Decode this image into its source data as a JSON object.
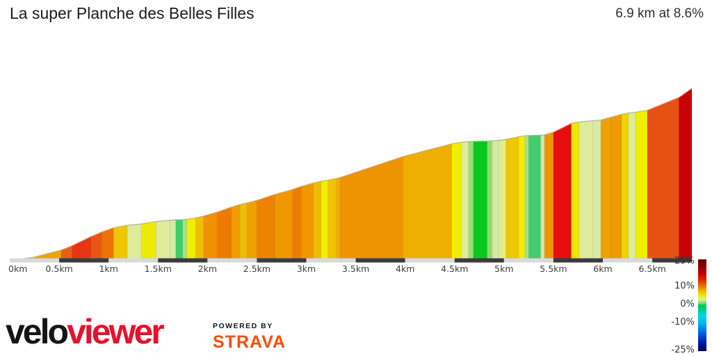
{
  "page": {
    "title": "La super Planche des Belles Filles",
    "summary": "6.9 km at 8.6%"
  },
  "chart_data": {
    "type": "area",
    "title": "La super Planche des Belles Filles",
    "subtitle": "6.9 km at 8.6%",
    "length_km": 6.9,
    "avg_gradient_pct": 8.6,
    "x_range_km": [
      0,
      6.9
    ],
    "x_tick_step_km": 0.5,
    "x_tick_labels": [
      "0km",
      "0.5km",
      "1km",
      "1.5km",
      "2km",
      "2.5km",
      "3km",
      "3.5km",
      "4km",
      "4.5km",
      "5km",
      "5.5km",
      "6km",
      "6.5km"
    ],
    "grid": false,
    "segments": [
      {
        "from_km": 0.0,
        "to_km": 0.25,
        "gradient_pct": 4.0,
        "color": "#e8c414"
      },
      {
        "from_km": 0.25,
        "to_km": 0.52,
        "gradient_pct": 7.0,
        "color": "#efa306"
      },
      {
        "from_km": 0.52,
        "to_km": 0.63,
        "gradient_pct": 11.0,
        "color": "#e95d17"
      },
      {
        "from_km": 0.63,
        "to_km": 0.82,
        "gradient_pct": 13.0,
        "color": "#e73513"
      },
      {
        "from_km": 0.82,
        "to_km": 0.93,
        "gradient_pct": 11.5,
        "color": "#e85514"
      },
      {
        "from_km": 0.93,
        "to_km": 1.05,
        "gradient_pct": 9.5,
        "color": "#ed7104"
      },
      {
        "from_km": 1.05,
        "to_km": 1.19,
        "gradient_pct": 5.0,
        "color": "#eec606"
      },
      {
        "from_km": 1.19,
        "to_km": 1.33,
        "gradient_pct": 2.5,
        "color": "#dfeb9a"
      },
      {
        "from_km": 1.33,
        "to_km": 1.48,
        "gradient_pct": 4.5,
        "color": "#efe906"
      },
      {
        "from_km": 1.48,
        "to_km": 1.62,
        "gradient_pct": 2.5,
        "color": "#dfeb9a"
      },
      {
        "from_km": 1.62,
        "to_km": 1.68,
        "gradient_pct": 2.0,
        "color": "#d4e9a5"
      },
      {
        "from_km": 1.68,
        "to_km": 1.75,
        "gradient_pct": 0.8,
        "color": "#3ecf68"
      },
      {
        "from_km": 1.75,
        "to_km": 1.79,
        "gradient_pct": 1.5,
        "color": "#a5e18c"
      },
      {
        "from_km": 1.79,
        "to_km": 1.88,
        "gradient_pct": 4.5,
        "color": "#f0ee03"
      },
      {
        "from_km": 1.88,
        "to_km": 1.96,
        "gradient_pct": 6.0,
        "color": "#eec002"
      },
      {
        "from_km": 1.96,
        "to_km": 2.1,
        "gradient_pct": 8.0,
        "color": "#ef9102"
      },
      {
        "from_km": 2.1,
        "to_km": 2.24,
        "gradient_pct": 9.5,
        "color": "#ed7a02"
      },
      {
        "from_km": 2.24,
        "to_km": 2.33,
        "gradient_pct": 8.0,
        "color": "#f09c02"
      },
      {
        "from_km": 2.33,
        "to_km": 2.4,
        "gradient_pct": 6.0,
        "color": "#eebc02"
      },
      {
        "from_km": 2.4,
        "to_km": 2.5,
        "gradient_pct": 7.0,
        "color": "#eda202"
      },
      {
        "from_km": 2.5,
        "to_km": 2.68,
        "gradient_pct": 9.0,
        "color": "#ee8202"
      },
      {
        "from_km": 2.68,
        "to_km": 2.86,
        "gradient_pct": 7.5,
        "color": "#f09802"
      },
      {
        "from_km": 2.86,
        "to_km": 2.95,
        "gradient_pct": 9.5,
        "color": "#ee7c02"
      },
      {
        "from_km": 2.95,
        "to_km": 3.07,
        "gradient_pct": 7.5,
        "color": "#f09802"
      },
      {
        "from_km": 3.07,
        "to_km": 3.15,
        "gradient_pct": 6.0,
        "color": "#eebc02"
      },
      {
        "from_km": 3.15,
        "to_km": 3.22,
        "gradient_pct": 4.5,
        "color": "#f0f002"
      },
      {
        "from_km": 3.22,
        "to_km": 3.3,
        "gradient_pct": 5.5,
        "color": "#eec402"
      },
      {
        "from_km": 3.3,
        "to_km": 3.34,
        "gradient_pct": 6.5,
        "color": "#edb002"
      },
      {
        "from_km": 3.34,
        "to_km": 3.98,
        "gradient_pct": 9.0,
        "color": "#ee9402"
      },
      {
        "from_km": 3.98,
        "to_km": 4.47,
        "gradient_pct": 7.0,
        "color": "#eeae02"
      },
      {
        "from_km": 4.47,
        "to_km": 4.57,
        "gradient_pct": 4.5,
        "color": "#f0ee03"
      },
      {
        "from_km": 4.57,
        "to_km": 4.64,
        "gradient_pct": 2.5,
        "color": "#dfeb9a"
      },
      {
        "from_km": 4.64,
        "to_km": 4.69,
        "gradient_pct": 1.5,
        "color": "#9edd78"
      },
      {
        "from_km": 4.69,
        "to_km": 4.83,
        "gradient_pct": 0.5,
        "color": "#06c81e"
      },
      {
        "from_km": 4.83,
        "to_km": 4.88,
        "gradient_pct": 1.2,
        "color": "#8fdc64"
      },
      {
        "from_km": 4.88,
        "to_km": 4.95,
        "gradient_pct": 2.2,
        "color": "#d4e9a5"
      },
      {
        "from_km": 4.95,
        "to_km": 5.02,
        "gradient_pct": 3.5,
        "color": "#e4ed8a"
      },
      {
        "from_km": 5.02,
        "to_km": 5.15,
        "gradient_pct": 5.5,
        "color": "#eec702"
      },
      {
        "from_km": 5.15,
        "to_km": 5.21,
        "gradient_pct": 4.5,
        "color": "#f0ee03"
      },
      {
        "from_km": 5.21,
        "to_km": 5.25,
        "gradient_pct": 1.5,
        "color": "#a5e18c"
      },
      {
        "from_km": 5.25,
        "to_km": 5.37,
        "gradient_pct": 1.0,
        "color": "#44cc6e"
      },
      {
        "from_km": 5.37,
        "to_km": 5.41,
        "gradient_pct": 2.0,
        "color": "#cfe8ac"
      },
      {
        "from_km": 5.41,
        "to_km": 5.5,
        "gradient_pct": 8.0,
        "color": "#ef9502"
      },
      {
        "from_km": 5.5,
        "to_km": 5.68,
        "gradient_pct": 13.5,
        "color": "#e60e0e"
      },
      {
        "from_km": 5.68,
        "to_km": 5.76,
        "gradient_pct": 4.5,
        "color": "#efe606"
      },
      {
        "from_km": 5.76,
        "to_km": 5.9,
        "gradient_pct": 2.5,
        "color": "#dfeb9a"
      },
      {
        "from_km": 5.9,
        "to_km": 5.98,
        "gradient_pct": 2.2,
        "color": "#d8eaa8"
      },
      {
        "from_km": 5.98,
        "to_km": 6.08,
        "gradient_pct": 7.5,
        "color": "#efa002"
      },
      {
        "from_km": 6.08,
        "to_km": 6.19,
        "gradient_pct": 7.5,
        "color": "#ee9b02"
      },
      {
        "from_km": 6.19,
        "to_km": 6.26,
        "gradient_pct": 5.0,
        "color": "#eed402"
      },
      {
        "from_km": 6.26,
        "to_km": 6.33,
        "gradient_pct": 2.8,
        "color": "#dfeb9a"
      },
      {
        "from_km": 6.33,
        "to_km": 6.45,
        "gradient_pct": 4.5,
        "color": "#f0ee03"
      },
      {
        "from_km": 6.45,
        "to_km": 6.77,
        "gradient_pct": 11.0,
        "color": "#e75112"
      },
      {
        "from_km": 6.77,
        "to_km": 6.9,
        "gradient_pct": 19.0,
        "color": "#c80202"
      }
    ],
    "axis_bar": {
      "interval_km": 0.5,
      "light": "#d9d9d9",
      "dark": "#3a3a3a"
    },
    "legend": {
      "position": "bottom-right",
      "tick_labels": [
        "25%",
        "10%",
        "0%",
        "-10%",
        "-25%"
      ],
      "tick_values": [
        25,
        10,
        0,
        -10,
        -25
      ],
      "range_pct": [
        -25,
        25
      ],
      "gradient_stops": [
        {
          "pct": 25,
          "color": "#600000"
        },
        {
          "pct": 21,
          "color": "#900000"
        },
        {
          "pct": 17,
          "color": "#cc0000"
        },
        {
          "pct": 13,
          "color": "#e63200"
        },
        {
          "pct": 11,
          "color": "#ea6400"
        },
        {
          "pct": 9,
          "color": "#f09600"
        },
        {
          "pct": 7,
          "color": "#eec800"
        },
        {
          "pct": 5,
          "color": "#f0f000"
        },
        {
          "pct": 3,
          "color": "#ddeda0"
        },
        {
          "pct": 1,
          "color": "#7cd764"
        },
        {
          "pct": 0,
          "color": "#00cc44"
        },
        {
          "pct": -3,
          "color": "#00ce9e"
        },
        {
          "pct": -6,
          "color": "#00d8e6"
        },
        {
          "pct": -10,
          "color": "#00b4f0"
        },
        {
          "pct": -15,
          "color": "#0064e6"
        },
        {
          "pct": -20,
          "color": "#0020b4"
        },
        {
          "pct": -25,
          "color": "#000560"
        }
      ]
    }
  },
  "footer": {
    "brand_black": "velo",
    "brand_red": "viewer",
    "powered_by": "POWERED BY",
    "strava": "STRAVA",
    "brand_red_color": "#e8112d",
    "strava_color": "#fc4c02"
  }
}
